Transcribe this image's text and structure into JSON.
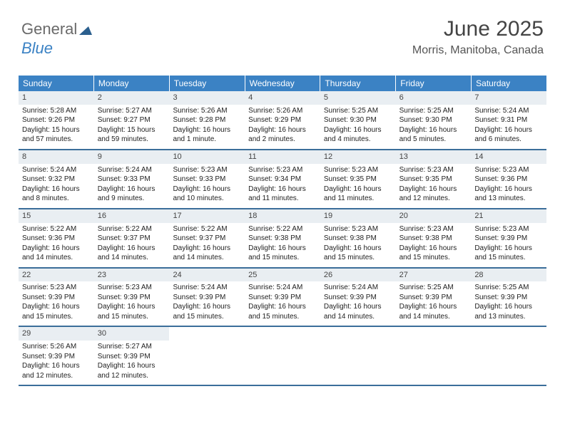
{
  "logo": {
    "text1": "General",
    "text2": "Blue"
  },
  "header": {
    "title": "June 2025",
    "location": "Morris, Manitoba, Canada"
  },
  "colors": {
    "header_bg": "#3b82c4",
    "header_fg": "#ffffff",
    "daynum_bg": "#e9eef2",
    "rule": "#3b6e9a"
  },
  "layout": {
    "columns": 7,
    "rows": 5,
    "cell_font_size": 10,
    "header_font_size": 12
  },
  "dayNames": [
    "Sunday",
    "Monday",
    "Tuesday",
    "Wednesday",
    "Thursday",
    "Friday",
    "Saturday"
  ],
  "days": [
    {
      "n": "1",
      "sr": "Sunrise: 5:28 AM",
      "ss": "Sunset: 9:26 PM",
      "dl": "Daylight: 15 hours and 57 minutes."
    },
    {
      "n": "2",
      "sr": "Sunrise: 5:27 AM",
      "ss": "Sunset: 9:27 PM",
      "dl": "Daylight: 15 hours and 59 minutes."
    },
    {
      "n": "3",
      "sr": "Sunrise: 5:26 AM",
      "ss": "Sunset: 9:28 PM",
      "dl": "Daylight: 16 hours and 1 minute."
    },
    {
      "n": "4",
      "sr": "Sunrise: 5:26 AM",
      "ss": "Sunset: 9:29 PM",
      "dl": "Daylight: 16 hours and 2 minutes."
    },
    {
      "n": "5",
      "sr": "Sunrise: 5:25 AM",
      "ss": "Sunset: 9:30 PM",
      "dl": "Daylight: 16 hours and 4 minutes."
    },
    {
      "n": "6",
      "sr": "Sunrise: 5:25 AM",
      "ss": "Sunset: 9:30 PM",
      "dl": "Daylight: 16 hours and 5 minutes."
    },
    {
      "n": "7",
      "sr": "Sunrise: 5:24 AM",
      "ss": "Sunset: 9:31 PM",
      "dl": "Daylight: 16 hours and 6 minutes."
    },
    {
      "n": "8",
      "sr": "Sunrise: 5:24 AM",
      "ss": "Sunset: 9:32 PM",
      "dl": "Daylight: 16 hours and 8 minutes."
    },
    {
      "n": "9",
      "sr": "Sunrise: 5:24 AM",
      "ss": "Sunset: 9:33 PM",
      "dl": "Daylight: 16 hours and 9 minutes."
    },
    {
      "n": "10",
      "sr": "Sunrise: 5:23 AM",
      "ss": "Sunset: 9:33 PM",
      "dl": "Daylight: 16 hours and 10 minutes."
    },
    {
      "n": "11",
      "sr": "Sunrise: 5:23 AM",
      "ss": "Sunset: 9:34 PM",
      "dl": "Daylight: 16 hours and 11 minutes."
    },
    {
      "n": "12",
      "sr": "Sunrise: 5:23 AM",
      "ss": "Sunset: 9:35 PM",
      "dl": "Daylight: 16 hours and 11 minutes."
    },
    {
      "n": "13",
      "sr": "Sunrise: 5:23 AM",
      "ss": "Sunset: 9:35 PM",
      "dl": "Daylight: 16 hours and 12 minutes."
    },
    {
      "n": "14",
      "sr": "Sunrise: 5:23 AM",
      "ss": "Sunset: 9:36 PM",
      "dl": "Daylight: 16 hours and 13 minutes."
    },
    {
      "n": "15",
      "sr": "Sunrise: 5:22 AM",
      "ss": "Sunset: 9:36 PM",
      "dl": "Daylight: 16 hours and 14 minutes."
    },
    {
      "n": "16",
      "sr": "Sunrise: 5:22 AM",
      "ss": "Sunset: 9:37 PM",
      "dl": "Daylight: 16 hours and 14 minutes."
    },
    {
      "n": "17",
      "sr": "Sunrise: 5:22 AM",
      "ss": "Sunset: 9:37 PM",
      "dl": "Daylight: 16 hours and 14 minutes."
    },
    {
      "n": "18",
      "sr": "Sunrise: 5:22 AM",
      "ss": "Sunset: 9:38 PM",
      "dl": "Daylight: 16 hours and 15 minutes."
    },
    {
      "n": "19",
      "sr": "Sunrise: 5:23 AM",
      "ss": "Sunset: 9:38 PM",
      "dl": "Daylight: 16 hours and 15 minutes."
    },
    {
      "n": "20",
      "sr": "Sunrise: 5:23 AM",
      "ss": "Sunset: 9:38 PM",
      "dl": "Daylight: 16 hours and 15 minutes."
    },
    {
      "n": "21",
      "sr": "Sunrise: 5:23 AM",
      "ss": "Sunset: 9:39 PM",
      "dl": "Daylight: 16 hours and 15 minutes."
    },
    {
      "n": "22",
      "sr": "Sunrise: 5:23 AM",
      "ss": "Sunset: 9:39 PM",
      "dl": "Daylight: 16 hours and 15 minutes."
    },
    {
      "n": "23",
      "sr": "Sunrise: 5:23 AM",
      "ss": "Sunset: 9:39 PM",
      "dl": "Daylight: 16 hours and 15 minutes."
    },
    {
      "n": "24",
      "sr": "Sunrise: 5:24 AM",
      "ss": "Sunset: 9:39 PM",
      "dl": "Daylight: 16 hours and 15 minutes."
    },
    {
      "n": "25",
      "sr": "Sunrise: 5:24 AM",
      "ss": "Sunset: 9:39 PM",
      "dl": "Daylight: 16 hours and 15 minutes."
    },
    {
      "n": "26",
      "sr": "Sunrise: 5:24 AM",
      "ss": "Sunset: 9:39 PM",
      "dl": "Daylight: 16 hours and 14 minutes."
    },
    {
      "n": "27",
      "sr": "Sunrise: 5:25 AM",
      "ss": "Sunset: 9:39 PM",
      "dl": "Daylight: 16 hours and 14 minutes."
    },
    {
      "n": "28",
      "sr": "Sunrise: 5:25 AM",
      "ss": "Sunset: 9:39 PM",
      "dl": "Daylight: 16 hours and 13 minutes."
    },
    {
      "n": "29",
      "sr": "Sunrise: 5:26 AM",
      "ss": "Sunset: 9:39 PM",
      "dl": "Daylight: 16 hours and 12 minutes."
    },
    {
      "n": "30",
      "sr": "Sunrise: 5:27 AM",
      "ss": "Sunset: 9:39 PM",
      "dl": "Daylight: 16 hours and 12 minutes."
    }
  ]
}
